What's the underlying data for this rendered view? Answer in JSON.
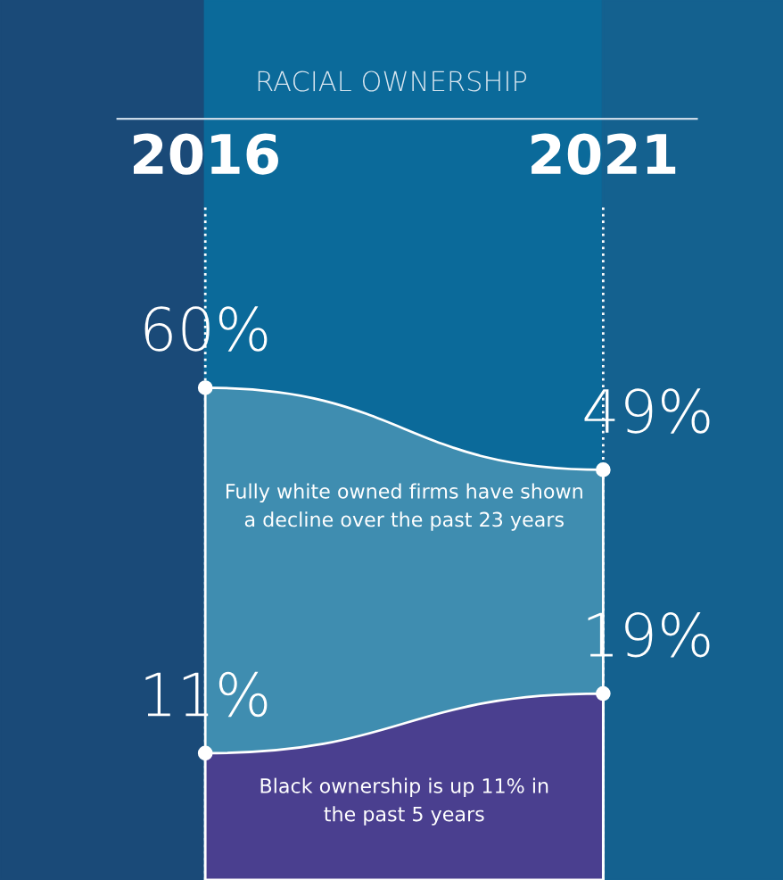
{
  "chart_data": {
    "type": "area",
    "title": "RACIAL OWNERSHIP",
    "categories": [
      "2016",
      "2021"
    ],
    "series": [
      {
        "name": null,
        "color": "#3f8db0",
        "values": [
          60,
          49
        ],
        "value_labels": [
          "60%",
          "49%"
        ]
      },
      {
        "name": null,
        "color": "#4a3f8f",
        "values": [
          11,
          19
        ],
        "value_labels": [
          "11%",
          "19%"
        ]
      }
    ],
    "annotations": [
      "Fully white owned firms have shown\na decline over the past 23 years",
      "Black ownership is up 11% in\nthe past 5 years"
    ],
    "grid": "x",
    "marker": "circle"
  }
}
